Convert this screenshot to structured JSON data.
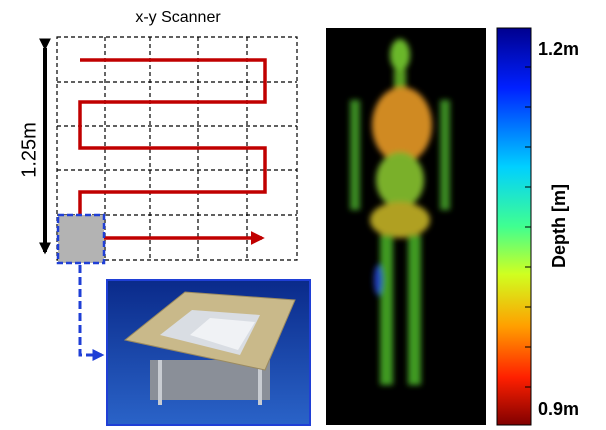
{
  "scanner": {
    "title": "x-y Scanner",
    "height_label": "1.25m"
  },
  "colorbar": {
    "title": "Depth [m]",
    "top_label": "1.2m",
    "bottom_label": "0.9m"
  }
}
